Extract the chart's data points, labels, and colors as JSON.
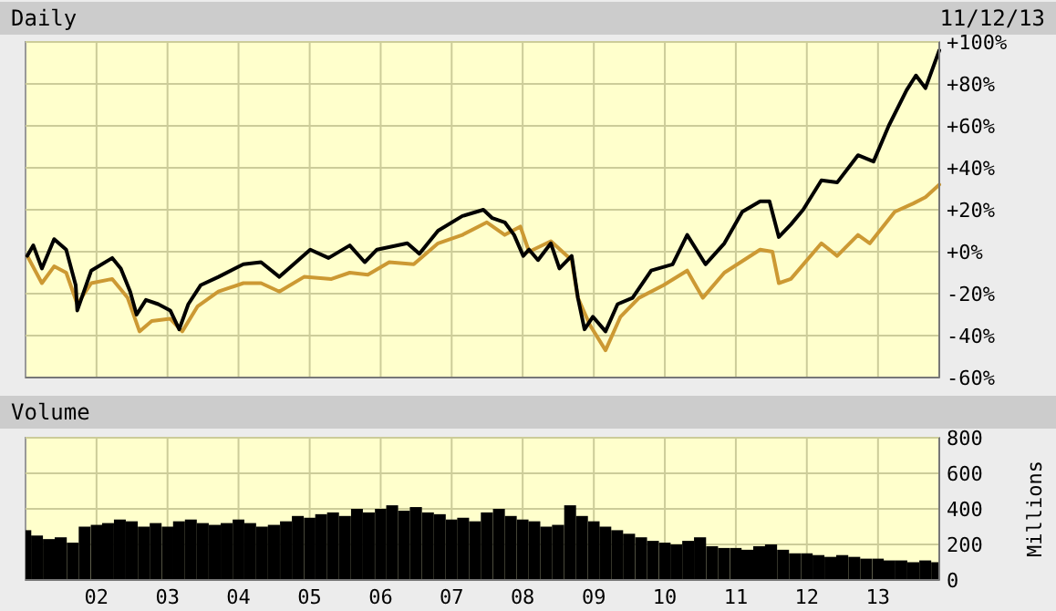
{
  "chart_data": [
    {
      "type": "line",
      "title": "Daily",
      "annotations": [
        "11/12/13"
      ],
      "xlim": [
        "2001-01-01",
        "2013-11-12"
      ],
      "xticks": [
        {
          "value": "2002-01-01",
          "label": null
        },
        {
          "value": "2003-01-01",
          "label": null
        },
        {
          "value": "2004-01-01",
          "label": null
        },
        {
          "value": "2005-01-01",
          "label": null
        },
        {
          "value": "2006-01-01",
          "label": null
        },
        {
          "value": "2007-01-01",
          "label": null
        },
        {
          "value": "2008-01-01",
          "label": null
        },
        {
          "value": "2009-01-01",
          "label": null
        },
        {
          "value": "2010-01-01",
          "label": null
        },
        {
          "value": "2011-01-01",
          "label": null
        },
        {
          "value": "2012-01-01",
          "label": null
        },
        {
          "value": "2013-01-01",
          "label": null
        }
      ],
      "ylim": [
        -60,
        100
      ],
      "yticks": [
        {
          "value": -60,
          "label": "-60%"
        },
        {
          "value": -40,
          "label": "-40%"
        },
        {
          "value": -20,
          "label": "-20%"
        },
        {
          "value": 0,
          "label": "+0%"
        },
        {
          "value": 20,
          "label": "+20%"
        },
        {
          "value": 40,
          "label": "+40%"
        },
        {
          "value": 60,
          "label": "+60%"
        },
        {
          "value": 80,
          "label": "+80%"
        },
        {
          "value": 100,
          "label": "+100%"
        }
      ],
      "tick_labels": "y",
      "grid": true,
      "series": [
        {
          "color": "#cc9933",
          "x": [
            "2001-01-10",
            "2001-03-26",
            "2001-05-28",
            "2001-07-29",
            "2001-09-24",
            "2001-12-05",
            "2002-03-23",
            "2002-06-10",
            "2002-08-10",
            "2002-10-12",
            "2003-01-15",
            "2003-03-18",
            "2003-06-05",
            "2003-09-20",
            "2004-01-26",
            "2004-04-26",
            "2004-07-29",
            "2004-12-03",
            "2005-04-23",
            "2005-07-26",
            "2005-10-27",
            "2006-02-14",
            "2006-06-20",
            "2006-10-23",
            "2007-02-25",
            "2007-07-01",
            "2007-10-01",
            "2007-12-20",
            "2008-02-03",
            "2008-05-25",
            "2008-09-09",
            "2008-10-11",
            "2008-12-12",
            "2009-03-02",
            "2009-05-18",
            "2009-08-21",
            "2009-12-25",
            "2010-04-26",
            "2010-07-15",
            "2010-11-03",
            "2011-05-06",
            "2011-07-08",
            "2011-08-10",
            "2011-10-11",
            "2012-03-16",
            "2012-06-05",
            "2012-09-20",
            "2012-11-20",
            "2013-03-28",
            "2013-07-01",
            "2013-09-02",
            "2013-11-12"
          ],
          "values": [
            -2,
            -15,
            -7,
            -10,
            -25,
            -15,
            -13,
            -22,
            -38,
            -33,
            -32,
            -38,
            -26,
            -19,
            -15,
            -15,
            -19,
            -12,
            -13,
            -10,
            -11,
            -5,
            -6,
            4,
            8,
            14,
            8,
            12,
            0,
            5,
            -4,
            -22,
            -35,
            -47,
            -31,
            -22,
            -16,
            -9,
            -22,
            -10,
            1,
            0,
            -15,
            -13,
            4,
            -2,
            8,
            4,
            19,
            23,
            26,
            32
          ]
        },
        {
          "color": "#000000",
          "x": [
            "2001-01-10",
            "2001-02-10",
            "2001-03-26",
            "2001-05-28",
            "2001-07-29",
            "2001-09-16",
            "2001-09-24",
            "2001-12-05",
            "2002-03-23",
            "2002-05-06",
            "2002-06-23",
            "2002-07-26",
            "2002-09-12",
            "2002-11-14",
            "2003-01-15",
            "2003-03-02",
            "2003-04-18",
            "2003-06-20",
            "2003-09-20",
            "2004-01-26",
            "2004-04-26",
            "2004-07-29",
            "2005-01-04",
            "2005-04-08",
            "2005-07-26",
            "2005-10-11",
            "2005-12-13",
            "2006-05-18",
            "2006-07-19",
            "2006-10-23",
            "2007-02-25",
            "2007-06-13",
            "2007-07-29",
            "2007-10-01",
            "2007-11-18",
            "2008-01-04",
            "2008-02-03",
            "2008-03-20",
            "2008-05-25",
            "2008-07-08",
            "2008-09-09",
            "2008-10-11",
            "2008-11-14",
            "2008-12-27",
            "2009-03-02",
            "2009-05-03",
            "2009-07-19",
            "2009-10-23",
            "2010-02-10",
            "2010-04-26",
            "2010-07-29",
            "2010-11-03",
            "2011-02-03",
            "2011-05-06",
            "2011-06-23",
            "2011-08-10",
            "2011-10-11",
            "2011-12-13",
            "2012-03-16",
            "2012-06-05",
            "2012-09-20",
            "2012-12-09",
            "2013-02-25",
            "2013-05-28",
            "2013-07-15",
            "2013-09-02",
            "2013-11-12"
          ],
          "values": [
            -2,
            3,
            -8,
            6,
            1,
            -16,
            -28,
            -9,
            -3,
            -8,
            -19,
            -30,
            -23,
            -25,
            -28,
            -37,
            -25,
            -16,
            -12,
            -6,
            -5,
            -12,
            1,
            -3,
            3,
            -5,
            1,
            4,
            -1,
            10,
            17,
            20,
            16,
            14,
            8,
            -2,
            1,
            -4,
            4,
            -8,
            -2,
            -22,
            -37,
            -31,
            -38,
            -25,
            -22,
            -9,
            -6,
            8,
            -6,
            4,
            19,
            24,
            24,
            7,
            13,
            20,
            34,
            33,
            46,
            43,
            60,
            77,
            84,
            78,
            96
          ]
        }
      ]
    },
    {
      "type": "bar",
      "title": "Volume",
      "ylabel": "Millions",
      "xlim": [
        "2001-01-01",
        "2013-11-12"
      ],
      "xticks": [
        {
          "value": "2002-01-01",
          "label": "02"
        },
        {
          "value": "2003-01-01",
          "label": "03"
        },
        {
          "value": "2004-01-01",
          "label": "04"
        },
        {
          "value": "2005-01-01",
          "label": "05"
        },
        {
          "value": "2006-01-01",
          "label": "06"
        },
        {
          "value": "2007-01-01",
          "label": "07"
        },
        {
          "value": "2008-01-01",
          "label": "08"
        },
        {
          "value": "2009-01-01",
          "label": "09"
        },
        {
          "value": "2010-01-01",
          "label": "10"
        },
        {
          "value": "2011-01-01",
          "label": "11"
        },
        {
          "value": "2012-01-01",
          "label": "12"
        },
        {
          "value": "2013-01-01",
          "label": "13"
        }
      ],
      "ylim": [
        0,
        800
      ],
      "yticks": [
        0,
        200,
        400,
        600,
        800
      ],
      "grid": true,
      "color": "#000000",
      "x": [
        "2001-01-01",
        "2001-03-01",
        "2001-05-01",
        "2001-07-01",
        "2001-09-01",
        "2001-11-01",
        "2002-01-01",
        "2002-03-01",
        "2002-05-01",
        "2002-07-01",
        "2002-09-01",
        "2002-11-01",
        "2003-01-01",
        "2003-03-01",
        "2003-05-01",
        "2003-07-01",
        "2003-09-01",
        "2003-11-01",
        "2004-01-01",
        "2004-03-01",
        "2004-05-01",
        "2004-07-01",
        "2004-09-01",
        "2004-11-01",
        "2005-01-01",
        "2005-03-01",
        "2005-05-01",
        "2005-07-01",
        "2005-09-01",
        "2005-11-01",
        "2006-01-01",
        "2006-03-01",
        "2006-05-01",
        "2006-07-01",
        "2006-09-01",
        "2006-11-01",
        "2007-01-01",
        "2007-03-01",
        "2007-05-01",
        "2007-07-01",
        "2007-09-01",
        "2007-11-01",
        "2008-01-01",
        "2008-03-01",
        "2008-05-01",
        "2008-07-01",
        "2008-09-01",
        "2008-11-01",
        "2009-01-01",
        "2009-03-01",
        "2009-05-01",
        "2009-07-01",
        "2009-09-01",
        "2009-11-01",
        "2010-01-01",
        "2010-03-01",
        "2010-05-01",
        "2010-07-01",
        "2010-09-01",
        "2010-11-01",
        "2011-01-01",
        "2011-03-01",
        "2011-05-01",
        "2011-07-01",
        "2011-09-01",
        "2011-11-01",
        "2012-01-01",
        "2012-03-01",
        "2012-05-01",
        "2012-07-01",
        "2012-09-01",
        "2012-11-01",
        "2013-01-01",
        "2013-03-01",
        "2013-05-01",
        "2013-07-01",
        "2013-09-01",
        "2013-11-01"
      ],
      "values": [
        280,
        250,
        230,
        240,
        210,
        300,
        310,
        320,
        340,
        330,
        300,
        320,
        300,
        330,
        340,
        320,
        310,
        320,
        340,
        320,
        300,
        310,
        330,
        360,
        350,
        370,
        380,
        360,
        400,
        380,
        400,
        420,
        390,
        410,
        380,
        370,
        340,
        350,
        330,
        380,
        400,
        360,
        340,
        330,
        300,
        310,
        420,
        360,
        330,
        300,
        280,
        260,
        240,
        220,
        210,
        200,
        220,
        240,
        190,
        180,
        180,
        170,
        190,
        200,
        170,
        150,
        150,
        140,
        130,
        140,
        130,
        120,
        120,
        110,
        110,
        100,
        110,
        100
      ]
    }
  ]
}
